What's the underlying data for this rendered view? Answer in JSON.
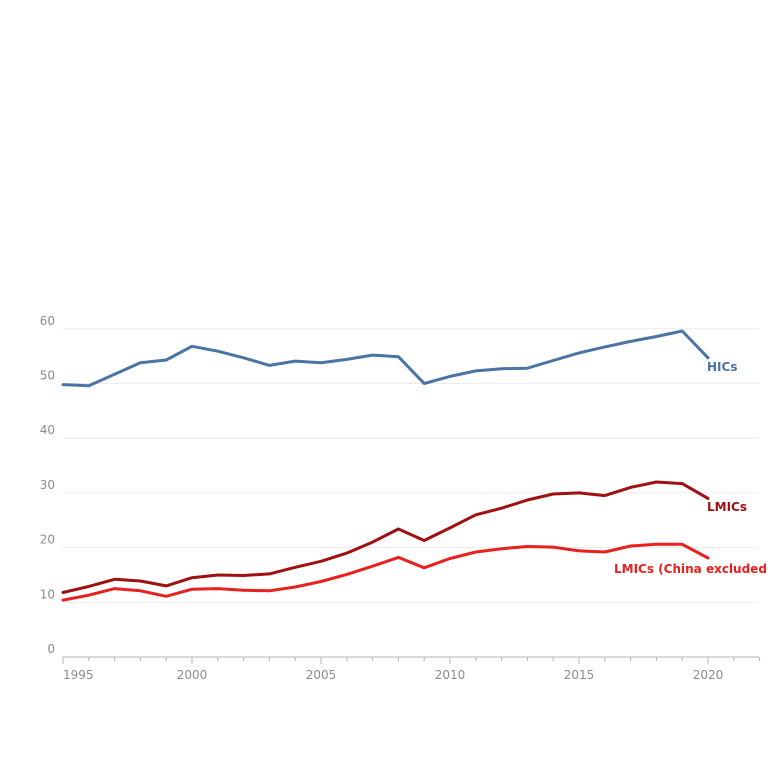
{
  "chart_data": {
    "type": "line",
    "title": "",
    "xlabel": "",
    "ylabel": "",
    "xlim": [
      1995,
      2022
    ],
    "ylim": [
      0,
      62
    ],
    "grid": true,
    "x_ticks": [
      1995,
      2000,
      2005,
      2010,
      2015,
      2020
    ],
    "x_tick_labels": [
      "1995",
      "2000",
      "2005",
      "2010",
      "2015",
      "2020"
    ],
    "y_ticks": [
      0,
      10,
      20,
      30,
      40,
      50,
      60
    ],
    "y_tick_labels": [
      "0",
      "10",
      "20",
      "30",
      "40",
      "50",
      "60"
    ],
    "x": [
      1995,
      1996,
      1997,
      1998,
      1999,
      2000,
      2001,
      2002,
      2003,
      2004,
      2005,
      2006,
      2007,
      2008,
      2009,
      2010,
      2011,
      2012,
      2013,
      2014,
      2015,
      2016,
      2017,
      2018,
      2019,
      2020
    ],
    "series": [
      {
        "name": "HICs",
        "color": "#4a74a5",
        "values": [
          49.8,
          49.6,
          51.7,
          53.8,
          54.3,
          56.8,
          55.9,
          54.7,
          53.3,
          54.1,
          53.8,
          54.4,
          55.2,
          54.9,
          50.0,
          51.3,
          52.3,
          52.7,
          52.8,
          54.2,
          55.6,
          56.7,
          57.7,
          58.6,
          59.6,
          54.7
        ]
      },
      {
        "name": "LMICs",
        "color": "#a01010",
        "values": [
          11.8,
          12.9,
          14.2,
          13.9,
          13.0,
          14.5,
          15.0,
          14.9,
          15.2,
          16.4,
          17.5,
          19.0,
          21.0,
          23.4,
          21.3,
          23.6,
          26.0,
          27.2,
          28.7,
          29.8,
          30.0,
          29.5,
          31.0,
          32.0,
          31.7,
          29.0
        ]
      },
      {
        "name": "LMICs (China excluded)",
        "color": "#e8211f",
        "values": [
          10.4,
          11.3,
          12.5,
          12.1,
          11.1,
          12.4,
          12.5,
          12.2,
          12.1,
          12.8,
          13.8,
          15.1,
          16.6,
          18.2,
          16.3,
          18.0,
          19.2,
          19.8,
          20.2,
          20.1,
          19.4,
          19.2,
          20.3,
          20.6,
          20.6,
          18.1
        ]
      }
    ]
  }
}
